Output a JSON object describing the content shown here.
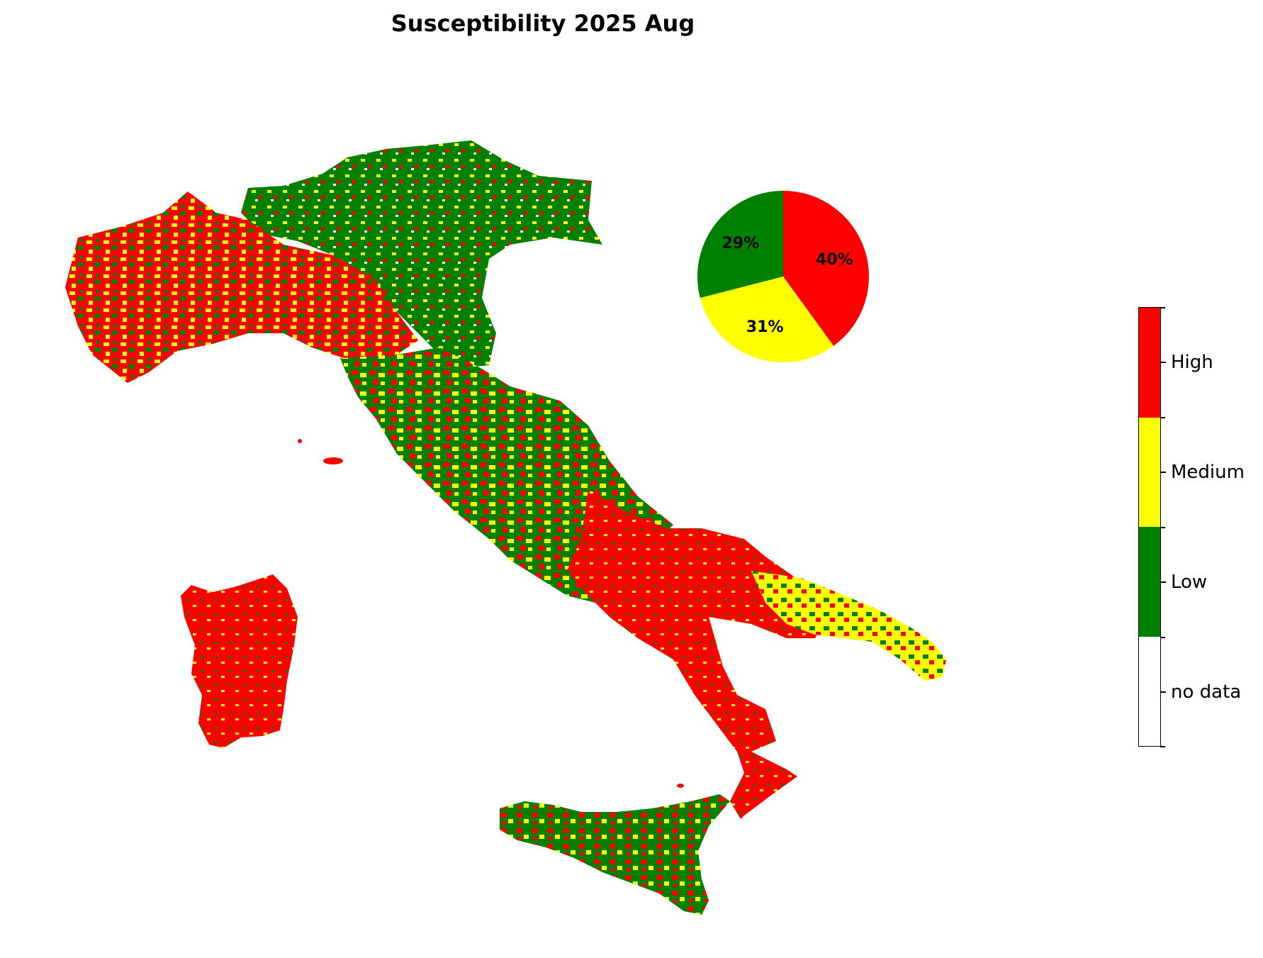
{
  "title": "Susceptibility 2025 Aug",
  "colors": {
    "high": "#ff0000",
    "medium": "#ffff00",
    "low": "#008000",
    "no_data": "#ffffff"
  },
  "chart_data": {
    "type": "pie",
    "slices": [
      {
        "label": "High",
        "value": 40,
        "text": "40%",
        "color": "#ff0000"
      },
      {
        "label": "Medium",
        "value": 31,
        "text": "31%",
        "color": "#ffff00"
      },
      {
        "label": "Low",
        "value": 29,
        "text": "29%",
        "color": "#008000"
      }
    ],
    "start_angle": 90,
    "direction": "clockwise"
  },
  "legend": {
    "type": "colorbar",
    "placement": "right",
    "classes": [
      {
        "label": "High",
        "color": "#ff0000"
      },
      {
        "label": "Medium",
        "color": "#ffff00"
      },
      {
        "label": "Low",
        "color": "#008000"
      },
      {
        "label": "no data",
        "color": "#ffffff"
      }
    ]
  }
}
